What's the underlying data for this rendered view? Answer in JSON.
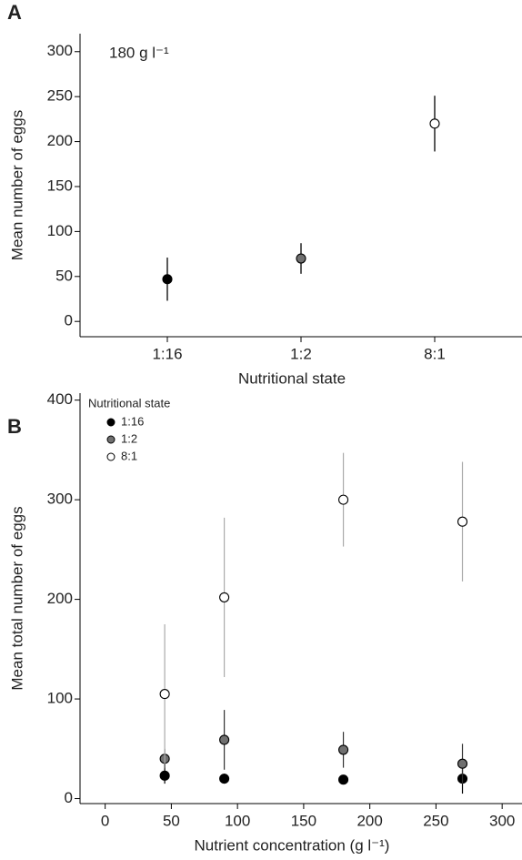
{
  "chart_data": [
    {
      "type": "scatter",
      "panel_label": "A",
      "annotation": "180 g l⁻¹",
      "x_label": "Nutritional state",
      "y_label": "Mean number of eggs",
      "categories": [
        "1:16",
        "1:2",
        "8:1"
      ],
      "values": [
        47,
        70,
        220
      ],
      "errors": [
        24,
        17,
        31
      ],
      "colors": [
        "#000000",
        "#707070",
        "#ffffff"
      ],
      "ylim": [
        -17,
        320
      ],
      "yticks": [
        0,
        50,
        100,
        150,
        200,
        250,
        300
      ]
    },
    {
      "type": "scatter",
      "panel_label": "B",
      "x_label": "Nutrient concentration (g l⁻¹)",
      "y_label": "Mean total number of eggs",
      "legend_title": "Nutritional state",
      "x": [
        45,
        90,
        180,
        270
      ],
      "series": [
        {
          "name": "1:16",
          "color": "#000000",
          "error_color": "#000000",
          "values": [
            23,
            20,
            19,
            20
          ],
          "errors": [
            8,
            5,
            3,
            15
          ]
        },
        {
          "name": "1:2",
          "color": "#707070",
          "error_color": "#333333",
          "values": [
            40,
            59,
            49,
            35
          ],
          "errors": [
            10,
            30,
            18,
            20
          ]
        },
        {
          "name": "8:1",
          "color": "#ffffff",
          "error_color": "#aaaaaa",
          "values": [
            105,
            202,
            300,
            278
          ],
          "errors": [
            70,
            80,
            47,
            60
          ]
        }
      ],
      "xlim": [
        -19,
        315
      ],
      "xticks": [
        0,
        50,
        100,
        150,
        200,
        250,
        300
      ],
      "ylim": [
        -5,
        407
      ],
      "yticks": [
        0,
        100,
        200,
        300,
        400
      ]
    }
  ]
}
